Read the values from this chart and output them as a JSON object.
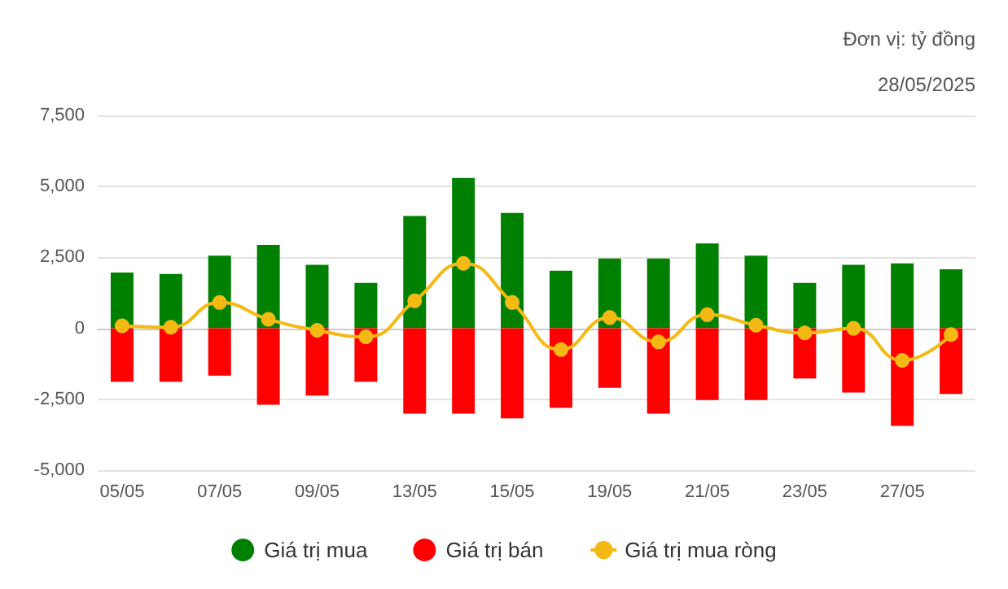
{
  "chart_data": {
    "type": "bar",
    "stacked": true,
    "annotations": [
      "Đơn vị: tỷ đồng",
      "28/05/2025"
    ],
    "categories": [
      "05/05",
      null,
      "07/05",
      null,
      "09/05",
      null,
      "13/05",
      null,
      "15/05",
      null,
      "19/05",
      null,
      "21/05",
      null,
      "23/05",
      null,
      "27/05",
      null
    ],
    "series": [
      {
        "name": "Giá trị mua",
        "color": "#008000",
        "values": [
          1970,
          1920,
          2560,
          2940,
          2240,
          1600,
          3960,
          5300,
          4070,
          2030,
          2460,
          2460,
          2990,
          2560,
          1600,
          2240,
          2290,
          2080
        ]
      },
      {
        "name": "Giá trị bán",
        "color": "#ff0000",
        "values": [
          -1880,
          -1880,
          -1670,
          -2690,
          -2370,
          -1880,
          -3010,
          -3010,
          -3170,
          -2800,
          -2100,
          -3010,
          -2530,
          -2530,
          -1770,
          -2260,
          -3440,
          -2310
        ]
      },
      {
        "name": "Giá trị mua ròng",
        "type": "line",
        "color": "#f5b914",
        "values": [
          90,
          40,
          910,
          320,
          -70,
          -300,
          970,
          2290,
          910,
          -750,
          380,
          -480,
          480,
          110,
          -160,
          0,
          -1130,
          -220
        ]
      }
    ],
    "marker": "circle",
    "line_style": "solid",
    "ylim": [
      -5000,
      7500
    ],
    "yticks": [
      {
        "value": -5000,
        "label": "-5,000"
      },
      {
        "value": -2500,
        "label": "-2,500"
      },
      {
        "value": 0,
        "label": "0"
      },
      {
        "value": 2500,
        "label": "2,500"
      },
      {
        "value": 5000,
        "label": "5,000"
      },
      {
        "value": 7500,
        "label": "7,500"
      }
    ],
    "grid": "y",
    "legend": "bottom"
  }
}
